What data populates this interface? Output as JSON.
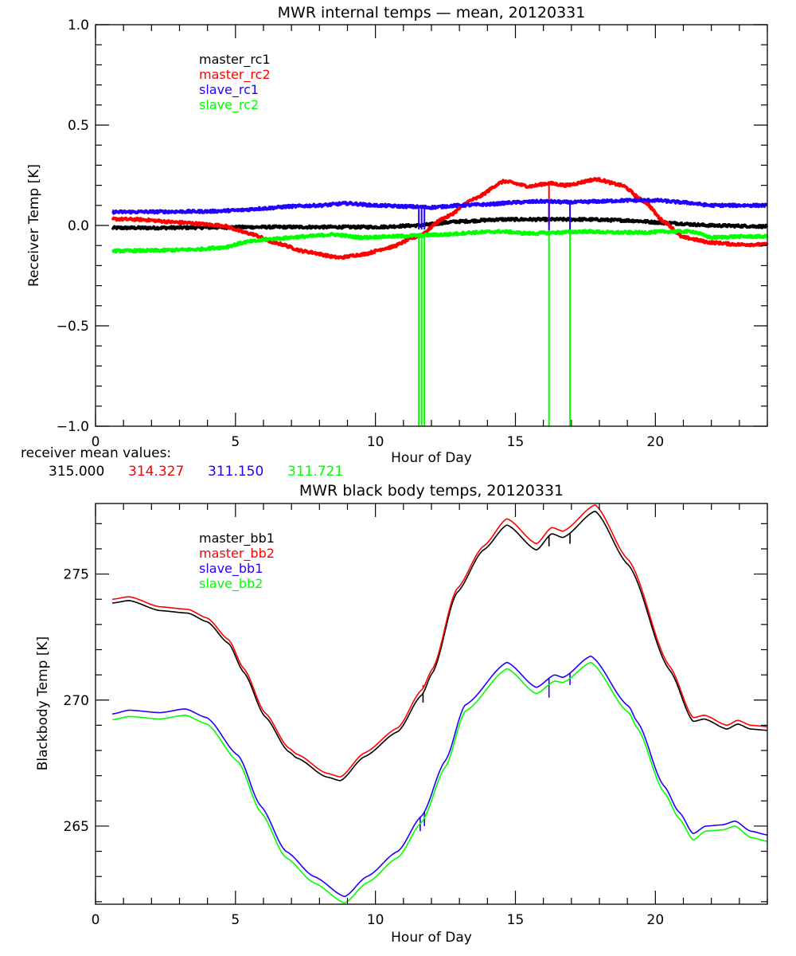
{
  "chart_data": [
    {
      "type": "line",
      "title": "MWR internal temps — mean, 20120331",
      "xlabel": "Hour of Day",
      "ylabel": "Receiver Temp [K]",
      "xlim": [
        0,
        24
      ],
      "ylim": [
        -1.0,
        1.0
      ],
      "xticks": [
        0,
        5,
        10,
        15,
        20
      ],
      "xtick_labels": [
        "0",
        "5",
        "10",
        "15",
        "20"
      ],
      "x_minor_step": 1,
      "yticks": [
        -1.0,
        -0.5,
        0.0,
        0.5,
        1.0
      ],
      "ytick_labels": [
        "−1.0",
        "−0.5",
        "0.0",
        "0.5",
        "1.0"
      ],
      "y_minor_step": 0.1,
      "grid": false,
      "legend_position": "top-left",
      "noisy": true,
      "series": [
        {
          "name": "master_rc1",
          "color": "#000000",
          "x": [
            0.6,
            2,
            4,
            6,
            8,
            10,
            11.5,
            13,
            14.5,
            16,
            17.5,
            19,
            20.5,
            22,
            24
          ],
          "y": [
            -0.012,
            -0.012,
            -0.01,
            -0.008,
            -0.008,
            -0.008,
            0.0,
            0.02,
            0.03,
            0.03,
            0.03,
            0.025,
            0.012,
            0.0,
            -0.005
          ],
          "spikes": []
        },
        {
          "name": "master_rc2",
          "color": "#ff0000",
          "x": [
            0.6,
            1.5,
            3,
            4.5,
            5.5,
            6.5,
            7.5,
            8.7,
            9.5,
            10.5,
            11.5,
            12.5,
            13.5,
            14.6,
            15.5,
            16.2,
            16.8,
            17.9,
            18.8,
            19.6,
            20.3,
            21,
            22,
            23,
            24
          ],
          "y": [
            0.032,
            0.03,
            0.015,
            0.0,
            -0.04,
            -0.09,
            -0.13,
            -0.16,
            -0.145,
            -0.11,
            -0.055,
            0.04,
            0.13,
            0.22,
            0.195,
            0.21,
            0.2,
            0.23,
            0.2,
            0.12,
            0.02,
            -0.06,
            -0.085,
            -0.095,
            -0.095
          ],
          "spikes": [
            {
              "x": 16.2,
              "to": 0.0
            }
          ]
        },
        {
          "name": "slave_rc1",
          "color": "#2200ff",
          "x": [
            0.6,
            2,
            4,
            5,
            6,
            7,
            8,
            9,
            10,
            11,
            12,
            13,
            14,
            15,
            16,
            17,
            18,
            19,
            20,
            21,
            22,
            23,
            24
          ],
          "y": [
            0.067,
            0.068,
            0.07,
            0.075,
            0.085,
            0.095,
            0.1,
            0.11,
            0.1,
            0.095,
            0.09,
            0.1,
            0.105,
            0.115,
            0.12,
            0.115,
            0.12,
            0.125,
            0.125,
            0.115,
            0.1,
            0.1,
            0.1
          ],
          "spikes": [
            {
              "x": 11.55,
              "to": -0.02
            },
            {
              "x": 11.65,
              "to": -0.02
            },
            {
              "x": 11.75,
              "to": -0.02
            },
            {
              "x": 16.2,
              "to": -0.03
            },
            {
              "x": 16.95,
              "to": -0.03
            }
          ]
        },
        {
          "name": "slave_rc2",
          "color": "#00ff00",
          "x": [
            0.6,
            2,
            3.5,
            4.5,
            5.5,
            6.5,
            7.5,
            8.5,
            9.5,
            10.5,
            11.5,
            12.5,
            13.5,
            14.5,
            15.5,
            16.5,
            17.5,
            18.5,
            19.5,
            20.5,
            21.3,
            22,
            23,
            24
          ],
          "y": [
            -0.127,
            -0.125,
            -0.12,
            -0.11,
            -0.08,
            -0.065,
            -0.055,
            -0.045,
            -0.06,
            -0.055,
            -0.05,
            -0.045,
            -0.035,
            -0.03,
            -0.04,
            -0.035,
            -0.03,
            -0.035,
            -0.035,
            -0.03,
            -0.03,
            -0.06,
            -0.055,
            -0.055
          ],
          "spikes": [
            {
              "x": 11.55,
              "to": -1.0
            },
            {
              "x": 11.65,
              "to": -1.0
            },
            {
              "x": 11.75,
              "to": -1.0
            },
            {
              "x": 16.2,
              "to": -1.0
            },
            {
              "x": 16.95,
              "to": -1.0
            }
          ]
        }
      ],
      "annotation": {
        "label": "receiver mean values:",
        "values": [
          {
            "text": "315.000",
            "color": "#000000"
          },
          {
            "text": "314.327",
            "color": "#ff0000"
          },
          {
            "text": "311.150",
            "color": "#2200ff"
          },
          {
            "text": "311.721",
            "color": "#00ff00"
          }
        ]
      }
    },
    {
      "type": "line",
      "title": "MWR black body temps, 20120331",
      "xlabel": "Hour of Day",
      "ylabel": "Blackbody Temp [K]",
      "xlim": [
        0,
        24
      ],
      "ylim": [
        261.9,
        277.8
      ],
      "xticks": [
        0,
        5,
        10,
        15,
        20
      ],
      "xtick_labels": [
        "0",
        "5",
        "10",
        "15",
        "20"
      ],
      "x_minor_step": 1,
      "yticks": [
        265,
        270,
        275
      ],
      "ytick_labels": [
        "265",
        "270",
        "275"
      ],
      "y_minor_step": 1,
      "grid": false,
      "legend_position": "top-left",
      "noisy": false,
      "series": [
        {
          "name": "master_bb1",
          "color": "#000000",
          "x": [
            0.6,
            1.2,
            2.3,
            3.3,
            4.0,
            4.75,
            5.3,
            6.05,
            6.9,
            7.2,
            8.25,
            8.75,
            9.6,
            10.8,
            11.65,
            12.05,
            12.9,
            13.85,
            14.7,
            15.75,
            16.3,
            16.7,
            17.85,
            19.05,
            20.5,
            21.35,
            21.75,
            22.55,
            22.95,
            23.4,
            24
          ],
          "y": [
            273.85,
            273.95,
            273.55,
            273.45,
            273.1,
            272.25,
            271.1,
            269.35,
            267.95,
            267.7,
            266.95,
            266.8,
            267.75,
            268.75,
            270.2,
            271.1,
            274.25,
            275.95,
            276.95,
            275.95,
            276.6,
            276.45,
            277.5,
            275.35,
            271.2,
            269.15,
            269.25,
            268.85,
            269.05,
            268.85,
            268.8
          ],
          "spikes": [
            {
              "x": 11.7,
              "to": 269.9
            },
            {
              "x": 16.2,
              "to": 276.1
            },
            {
              "x": 16.95,
              "to": 276.2
            }
          ]
        },
        {
          "name": "master_bb2",
          "color": "#ff0000",
          "x": [
            0.6,
            1.2,
            2.3,
            3.3,
            4.0,
            4.75,
            5.3,
            6.05,
            6.9,
            7.2,
            8.25,
            8.75,
            9.6,
            10.8,
            11.65,
            12.05,
            12.9,
            13.85,
            14.7,
            15.75,
            16.3,
            16.7,
            17.85,
            19.05,
            20.5,
            21.35,
            21.75,
            22.55,
            22.95,
            23.4,
            24
          ],
          "y": [
            274.0,
            274.1,
            273.7,
            273.6,
            273.25,
            272.4,
            271.25,
            269.5,
            268.1,
            267.85,
            267.1,
            266.95,
            267.9,
            268.9,
            270.4,
            271.25,
            274.4,
            276.1,
            277.2,
            276.2,
            276.85,
            276.7,
            277.75,
            275.55,
            271.35,
            269.3,
            269.4,
            269.0,
            269.2,
            269.0,
            268.95
          ],
          "spikes": [
            {
              "x": 11.7,
              "to": 270.6
            }
          ]
        },
        {
          "name": "slave_bb1",
          "color": "#2200ff",
          "x": [
            0.6,
            1.2,
            2.3,
            3.2,
            3.98,
            5.1,
            5.9,
            6.8,
            7.8,
            8.9,
            9.7,
            10.8,
            11.65,
            12.5,
            13.2,
            14.7,
            15.75,
            16.4,
            16.7,
            17.7,
            19.05,
            19.35,
            20.3,
            20.85,
            21.35,
            21.8,
            22.4,
            22.85,
            23.4,
            24
          ],
          "y": [
            269.45,
            269.6,
            269.5,
            269.65,
            269.3,
            267.8,
            265.8,
            264.0,
            263.0,
            262.2,
            263.0,
            264.0,
            265.4,
            267.6,
            269.8,
            271.5,
            270.5,
            271.0,
            270.9,
            271.75,
            269.75,
            269.15,
            266.6,
            265.55,
            264.7,
            265.0,
            265.05,
            265.2,
            264.8,
            264.65
          ],
          "spikes": [
            {
              "x": 11.6,
              "to": 264.8
            },
            {
              "x": 11.75,
              "to": 265.0
            },
            {
              "x": 16.2,
              "to": 270.1
            },
            {
              "x": 16.95,
              "to": 270.6
            }
          ]
        },
        {
          "name": "slave_bb2",
          "color": "#00ff00",
          "x": [
            0.6,
            1.2,
            2.3,
            3.2,
            3.98,
            5.1,
            5.9,
            6.8,
            7.8,
            8.9,
            9.7,
            10.8,
            11.65,
            12.5,
            13.2,
            14.7,
            15.75,
            16.4,
            16.7,
            17.7,
            19.05,
            19.35,
            20.3,
            20.85,
            21.35,
            21.8,
            22.4,
            22.85,
            23.4,
            24
          ],
          "y": [
            269.22,
            269.35,
            269.25,
            269.4,
            269.05,
            267.55,
            265.55,
            263.75,
            262.75,
            261.95,
            262.75,
            263.75,
            265.15,
            267.35,
            269.55,
            271.25,
            270.25,
            270.75,
            270.7,
            271.5,
            269.5,
            268.9,
            266.35,
            265.3,
            264.45,
            264.8,
            264.85,
            265.0,
            264.55,
            264.4
          ],
          "spikes": []
        }
      ]
    }
  ]
}
